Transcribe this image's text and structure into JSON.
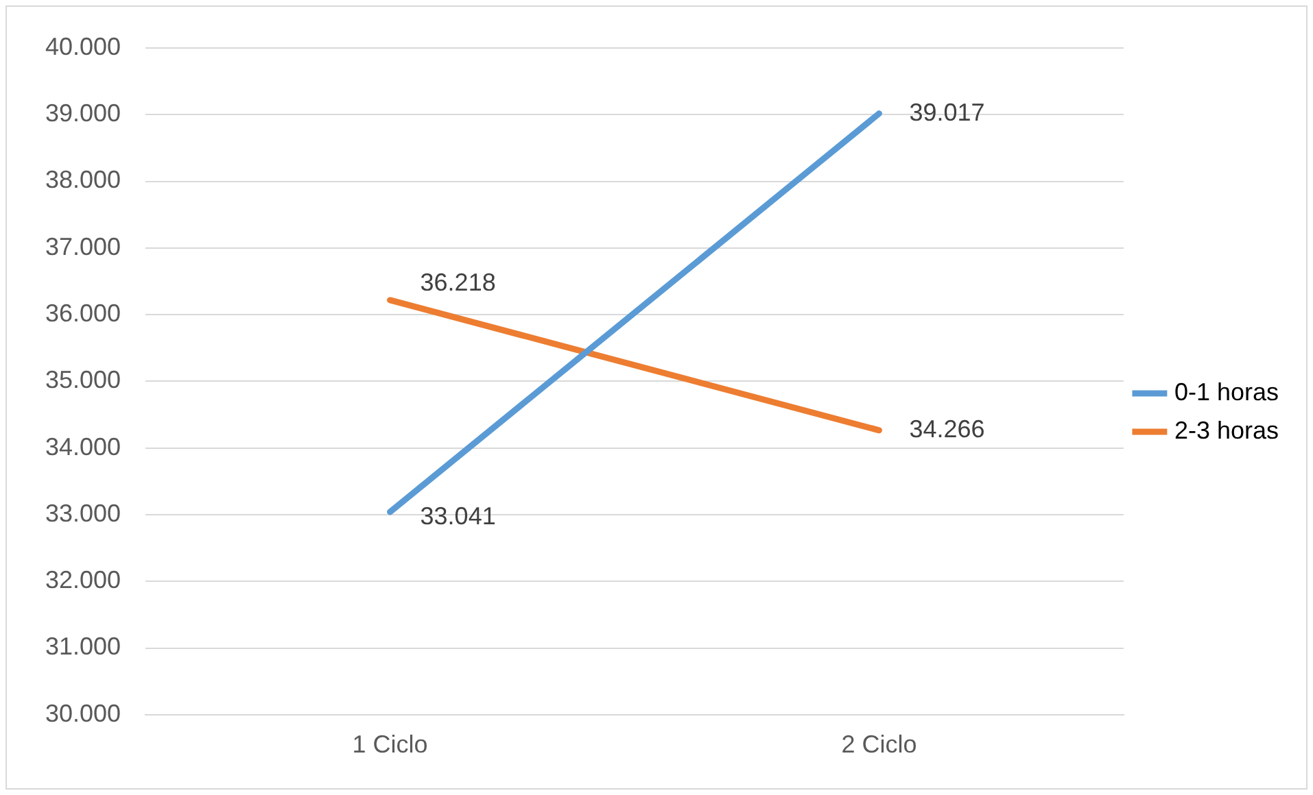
{
  "chart_data": {
    "type": "line",
    "categories": [
      "1 Ciclo",
      "2 Ciclo"
    ],
    "series": [
      {
        "name": "0-1 horas",
        "color": "#5b9bd5",
        "values": [
          33041,
          39017
        ],
        "value_labels": [
          "33.041",
          "39.017"
        ]
      },
      {
        "name": "2-3 horas",
        "color": "#ed7d31",
        "values": [
          36218,
          34266
        ],
        "value_labels": [
          "36.218",
          "34.266"
        ]
      }
    ],
    "ylim": [
      30000,
      40000
    ],
    "yticks": [
      {
        "value": 30000,
        "label": "30.000"
      },
      {
        "value": 31000,
        "label": "31.000"
      },
      {
        "value": 32000,
        "label": "32.000"
      },
      {
        "value": 33000,
        "label": "33.000"
      },
      {
        "value": 34000,
        "label": "34.000"
      },
      {
        "value": 35000,
        "label": "35.000"
      },
      {
        "value": 36000,
        "label": "36.000"
      },
      {
        "value": 37000,
        "label": "37.000"
      },
      {
        "value": 38000,
        "label": "38.000"
      },
      {
        "value": 39000,
        "label": "39.000"
      },
      {
        "value": 40000,
        "label": "40.000"
      }
    ],
    "grid": "y",
    "legend": "right",
    "marker": "none",
    "line_style": "solid"
  }
}
